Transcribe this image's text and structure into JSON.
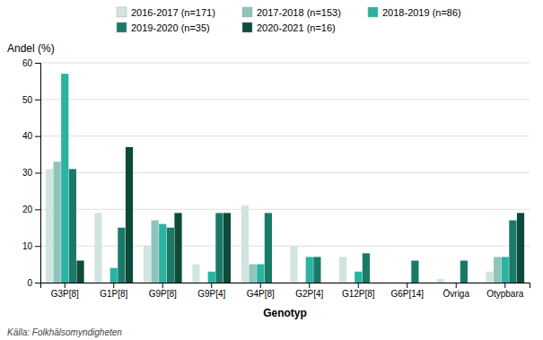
{
  "chart_data": {
    "type": "bar",
    "categories": [
      "G3P[8]",
      "G1P[8]",
      "G9P[8]",
      "G9P[4]",
      "G4P[8]",
      "G2P[4]",
      "G12P[8]",
      "G6P[14]",
      "Övriga",
      "Otypbara"
    ],
    "series": [
      {
        "name": "2016-2017 (n=171)",
        "color": "#d0e4e0",
        "values": [
          31,
          19,
          10,
          5,
          21,
          10,
          7,
          0,
          1,
          3
        ]
      },
      {
        "name": "2017-2018 (n=153)",
        "color": "#8fc4bc",
        "values": [
          33,
          0,
          17,
          0,
          5,
          0,
          0,
          0,
          0,
          7
        ]
      },
      {
        "name": "2018-2019 (n=86)",
        "color": "#2ab3a0",
        "values": [
          57,
          4,
          16,
          3,
          5,
          7,
          3,
          0,
          0,
          7
        ]
      },
      {
        "name": "2019-2020 (n=35)",
        "color": "#1a7a68",
        "values": [
          31,
          15,
          15,
          19,
          19,
          7,
          8,
          6,
          6,
          17
        ]
      },
      {
        "name": "2020-2021 (n=16)",
        "color": "#0d4a3c",
        "values": [
          6,
          37,
          19,
          19,
          0,
          0,
          0,
          0,
          0,
          19
        ]
      }
    ],
    "xlabel": "Genotyp",
    "ylabel": "Andel (%)",
    "ylim": [
      0,
      60
    ],
    "yticks": [
      0,
      10,
      20,
      30,
      40,
      50,
      60
    ],
    "grid": true,
    "legend": "top",
    "annotations": [
      "Källa: Folkhälsomyndigheten"
    ]
  }
}
